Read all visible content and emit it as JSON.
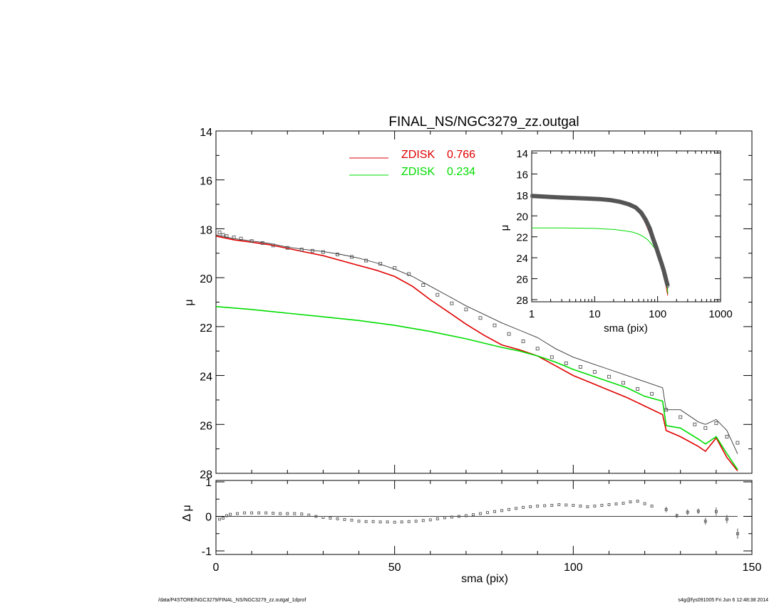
{
  "footer": {
    "path": "/data/P4STORE/NGC3279/FINAL_NS/NGC3279_zz.outgal_1dprof",
    "stamp": "s4g@fys091005  Fri Jun  6 12:48:38 2014"
  },
  "colors": {
    "axis": "#000000",
    "obs": "#555555",
    "model": "#333333",
    "zdisk1": "#e00000",
    "zdisk2": "#00dd00"
  },
  "chart_data": [
    {
      "type": "line",
      "title": "FINAL_NS/NGC3279_zz.outgal",
      "xlabel": "",
      "ylabel": "μ",
      "xlim": [
        0,
        150
      ],
      "ylim": [
        28,
        14
      ],
      "x_inverted": false,
      "y_inverted": true,
      "yticks": [
        "14",
        "16",
        "18",
        "20",
        "22",
        "24",
        "26",
        "28"
      ],
      "legend": [
        {
          "label": "ZDISK",
          "value": "0.766",
          "color": "#e00000"
        },
        {
          "label": "ZDISK",
          "value": "0.234",
          "color": "#00dd00"
        }
      ],
      "observed": {
        "x": [
          1,
          2,
          3,
          5,
          7,
          10,
          13,
          16,
          20,
          24,
          27,
          30,
          34,
          38,
          42,
          46,
          50,
          54,
          58,
          62,
          66,
          70,
          74,
          78,
          82,
          86,
          90,
          94,
          98,
          102,
          106,
          110,
          114,
          118,
          122,
          126,
          130,
          134,
          137,
          140,
          143,
          146
        ],
        "y": [
          18.15,
          18.25,
          18.3,
          18.35,
          18.4,
          18.5,
          18.58,
          18.68,
          18.78,
          18.85,
          18.9,
          18.95,
          19.05,
          19.15,
          19.3,
          19.43,
          19.6,
          19.85,
          20.3,
          20.7,
          21.05,
          21.3,
          21.65,
          21.95,
          22.3,
          22.6,
          22.9,
          23.25,
          23.5,
          23.65,
          23.85,
          24.05,
          24.3,
          24.55,
          24.75,
          25.4,
          25.7,
          26.0,
          26.15,
          25.95,
          26.5,
          26.75
        ]
      },
      "series": [
        {
          "name": "model-total",
          "x": [
            0,
            5,
            10,
            15,
            20,
            25,
            30,
            35,
            40,
            45,
            50,
            55,
            60,
            65,
            70,
            75,
            80,
            85,
            90,
            95,
            100,
            105,
            110,
            115,
            120,
            125,
            126,
            130,
            135,
            137,
            140,
            143,
            146
          ],
          "y": [
            18.25,
            18.4,
            18.5,
            18.6,
            18.75,
            18.85,
            18.93,
            19.05,
            19.2,
            19.4,
            19.65,
            19.95,
            20.35,
            20.75,
            21.15,
            21.5,
            21.85,
            22.15,
            22.45,
            22.9,
            23.25,
            23.5,
            23.75,
            24.0,
            24.25,
            24.5,
            25.4,
            25.4,
            25.9,
            26.0,
            25.8,
            26.25,
            27.2
          ]
        },
        {
          "name": "ZDISK 0.766",
          "x": [
            0,
            5,
            10,
            15,
            20,
            25,
            30,
            35,
            40,
            45,
            50,
            55,
            60,
            65,
            70,
            75,
            80,
            85,
            90,
            95,
            100,
            105,
            110,
            115,
            120,
            125,
            126,
            130,
            135,
            137,
            140,
            143,
            146
          ],
          "y": [
            18.3,
            18.45,
            18.55,
            18.65,
            18.8,
            18.95,
            19.1,
            19.3,
            19.5,
            19.7,
            19.95,
            20.35,
            20.9,
            21.4,
            21.9,
            22.35,
            22.75,
            22.95,
            23.2,
            23.6,
            24.0,
            24.3,
            24.6,
            24.9,
            25.25,
            25.6,
            26.25,
            26.5,
            26.9,
            27.1,
            26.55,
            27.35,
            27.9
          ]
        },
        {
          "name": "ZDISK 0.234",
          "x": [
            0,
            10,
            20,
            30,
            40,
            50,
            60,
            70,
            80,
            85,
            90,
            95,
            100,
            105,
            110,
            115,
            120,
            125,
            126,
            130,
            135,
            137,
            140,
            143,
            146
          ],
          "y": [
            21.18,
            21.3,
            21.45,
            21.6,
            21.75,
            21.95,
            22.2,
            22.5,
            22.85,
            23.0,
            23.2,
            23.45,
            23.75,
            24.0,
            24.25,
            24.5,
            24.85,
            25.05,
            26.05,
            26.15,
            26.6,
            26.8,
            26.5,
            27.2,
            27.85
          ]
        }
      ]
    },
    {
      "type": "scatter",
      "title": "",
      "xlabel": "sma (pix)",
      "ylabel": "Δ μ",
      "xlim": [
        0,
        150
      ],
      "ylim": [
        -1,
        1
      ],
      "xticks": [
        "0",
        "50",
        "100",
        "150"
      ],
      "yticks": [
        "-1",
        "0",
        "1"
      ],
      "x": [
        1,
        2,
        3,
        4,
        6,
        8,
        10,
        12,
        14,
        16,
        18,
        20,
        22,
        24,
        26,
        28,
        30,
        32,
        34,
        36,
        38,
        40,
        42,
        44,
        46,
        48,
        50,
        52,
        54,
        56,
        58,
        60,
        62,
        64,
        66,
        68,
        70,
        72,
        74,
        76,
        78,
        80,
        82,
        84,
        86,
        88,
        90,
        92,
        94,
        96,
        98,
        100,
        102,
        104,
        106,
        108,
        110,
        112,
        114,
        116,
        118,
        120,
        122,
        126,
        129,
        132,
        135,
        137,
        140,
        143,
        146
      ],
      "y": [
        -0.08,
        -0.05,
        0.02,
        0.06,
        0.08,
        0.1,
        0.1,
        0.1,
        0.1,
        0.09,
        0.08,
        0.08,
        0.08,
        0.07,
        0.04,
        0.0,
        -0.03,
        -0.05,
        -0.07,
        -0.09,
        -0.11,
        -0.14,
        -0.15,
        -0.15,
        -0.16,
        -0.16,
        -0.17,
        -0.16,
        -0.15,
        -0.14,
        -0.12,
        -0.1,
        -0.07,
        -0.04,
        -0.02,
        0.0,
        0.02,
        0.05,
        0.08,
        0.11,
        0.14,
        0.17,
        0.2,
        0.23,
        0.26,
        0.28,
        0.3,
        0.31,
        0.32,
        0.34,
        0.33,
        0.32,
        0.3,
        0.28,
        0.3,
        0.32,
        0.34,
        0.36,
        0.38,
        0.42,
        0.44,
        0.37,
        0.3,
        0.2,
        0.02,
        0.12,
        0.15,
        -0.14,
        0.14,
        -0.08,
        -0.5
      ],
      "error_bars": [
        {
          "x": 126,
          "y": 0.2,
          "err": 0.08
        },
        {
          "x": 129,
          "y": 0.02,
          "err": 0.06
        },
        {
          "x": 132,
          "y": 0.12,
          "err": 0.08
        },
        {
          "x": 135,
          "y": 0.15,
          "err": 0.08
        },
        {
          "x": 137,
          "y": -0.14,
          "err": 0.1
        },
        {
          "x": 140,
          "y": 0.14,
          "err": 0.12
        },
        {
          "x": 143,
          "y": -0.08,
          "err": 0.12
        },
        {
          "x": 146,
          "y": -0.5,
          "err": 0.15
        }
      ]
    },
    {
      "type": "line",
      "title": "",
      "xlabel": "sma (pix)",
      "ylabel": "μ",
      "x_scale": "log",
      "xlim": [
        1,
        1000
      ],
      "ylim": [
        28,
        14
      ],
      "xticks": [
        "1",
        "10",
        "100",
        "1000"
      ],
      "yticks": [
        "14",
        "16",
        "18",
        "20",
        "22",
        "24",
        "26",
        "28"
      ],
      "observed": {
        "x": [
          1,
          1.5,
          2,
          3,
          5,
          8,
          12,
          18,
          25,
          35,
          45,
          55,
          65,
          75,
          85,
          95,
          105,
          115,
          125,
          135,
          145
        ],
        "y": [
          18.1,
          18.15,
          18.2,
          18.25,
          18.3,
          18.35,
          18.4,
          18.5,
          18.65,
          18.9,
          19.2,
          19.7,
          20.4,
          21.2,
          22.2,
          23.0,
          23.8,
          24.5,
          25.2,
          26.0,
          26.7
        ]
      },
      "series": [
        {
          "name": "model-total",
          "x": [
            1,
            2,
            4,
            8,
            15,
            25,
            35,
            45,
            55,
            65,
            75,
            85,
            95,
            105,
            115,
            125,
            135,
            145
          ],
          "y": [
            18.15,
            18.2,
            18.28,
            18.35,
            18.45,
            18.6,
            18.85,
            19.2,
            19.8,
            20.6,
            21.4,
            22.2,
            23.0,
            23.7,
            24.3,
            25.0,
            25.9,
            27.0
          ]
        },
        {
          "name": "ZDISK 0.766",
          "x": [
            1,
            2,
            4,
            8,
            15,
            25,
            35,
            45,
            55,
            65,
            75,
            85,
            95,
            105,
            115,
            125,
            135,
            145
          ],
          "y": [
            18.15,
            18.2,
            18.28,
            18.35,
            18.45,
            18.6,
            18.85,
            19.25,
            19.9,
            20.8,
            21.7,
            22.5,
            23.3,
            24.0,
            24.8,
            25.6,
            26.6,
            27.6
          ]
        },
        {
          "name": "ZDISK 0.234",
          "x": [
            1,
            3,
            10,
            20,
            30,
            40,
            50,
            60,
            70,
            80,
            90,
            100,
            110,
            120,
            130,
            140,
            146
          ],
          "y": [
            21.15,
            21.15,
            21.2,
            21.3,
            21.42,
            21.55,
            21.75,
            22.0,
            22.3,
            22.7,
            23.1,
            23.6,
            24.1,
            24.8,
            25.6,
            26.6,
            27.4
          ]
        }
      ]
    }
  ]
}
